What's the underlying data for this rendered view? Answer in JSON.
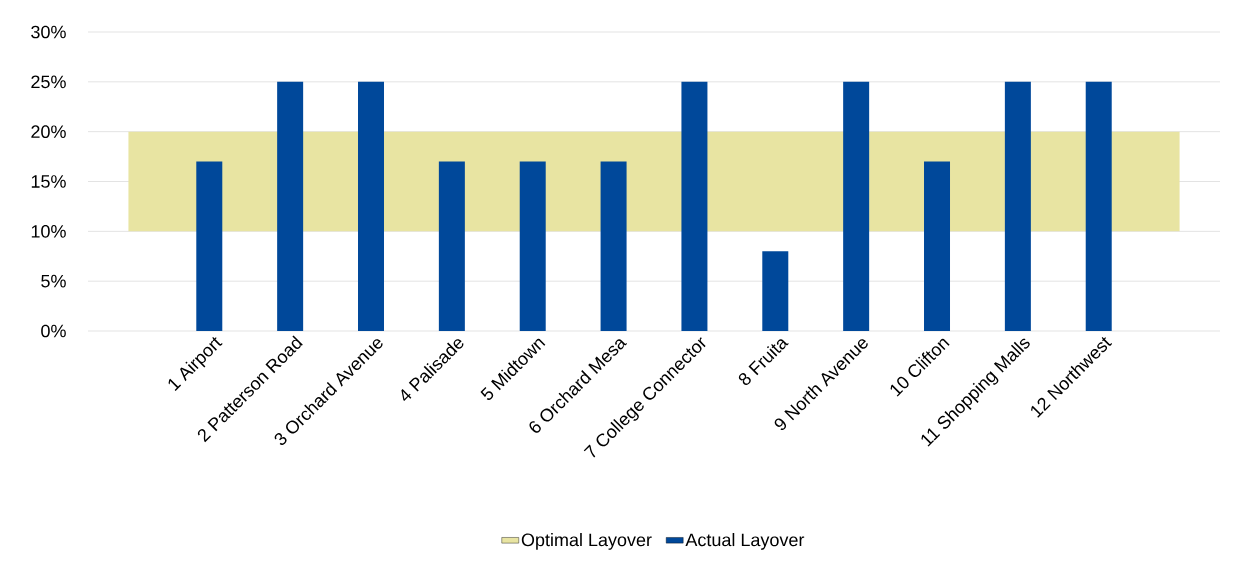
{
  "chart_data": {
    "type": "bar",
    "categories": [
      null,
      "1 Airport",
      "2 Patterson Road",
      "3 Orchard Avenue",
      "4 Palisade",
      "5 Midtown",
      "6 Orchard Mesa",
      "7 College Connector",
      "8 Fruita",
      "9 North Avenue",
      "10 Clifton",
      "11 Shopping Malls",
      "12 Northwest",
      null
    ],
    "series": [
      {
        "name": "Actual Layover",
        "color": "#00489a",
        "values": [
          null,
          17,
          25,
          25,
          17,
          17,
          17,
          25,
          8,
          25,
          17,
          25,
          25,
          null
        ]
      }
    ],
    "bands": [
      {
        "axis": "y",
        "from": 10,
        "to": 20,
        "label": "Optimal Layover",
        "color": "#e8e4a2"
      }
    ],
    "ylim": [
      0,
      30
    ],
    "yticks": [
      {
        "value": 0,
        "label": "0%"
      },
      {
        "value": 5,
        "label": "5%"
      },
      {
        "value": 10,
        "label": "10%"
      },
      {
        "value": 15,
        "label": "15%"
      },
      {
        "value": 20,
        "label": "20%"
      },
      {
        "value": 25,
        "label": "25%"
      },
      {
        "value": 30,
        "label": "30%"
      }
    ],
    "grid": "y",
    "legend": "bottom"
  }
}
